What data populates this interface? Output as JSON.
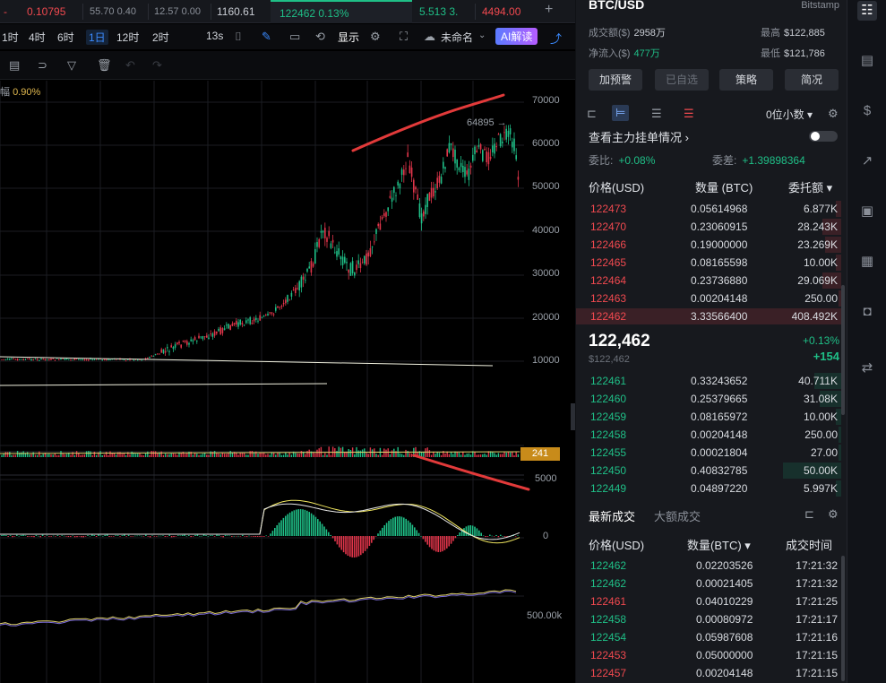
{
  "ticker_strip": {
    "items": [
      {
        "text": "-",
        "color": "red"
      },
      {
        "text": "0.10795",
        "color": "red"
      },
      {
        "text": "55.70  0.40",
        "color": "grey"
      },
      {
        "text": "12.57  0.00",
        "color": "grey"
      },
      {
        "text": "1160.61",
        "color": "light"
      },
      {
        "text": "122462  0.13%",
        "color": "green"
      },
      {
        "text": "5.513  3.",
        "color": "green"
      },
      {
        "text": "4494.00",
        "color": "red"
      }
    ]
  },
  "toolbar": {
    "timeframes": [
      "1时",
      "4时",
      "6时",
      "1日",
      "12时",
      "2时"
    ],
    "active_timeframe": "1日",
    "countdown": "13s",
    "display_label": "显示",
    "layout_name": "未命名",
    "ai_label": "AI解读"
  },
  "chart": {
    "change_pct": "0.90%",
    "high_label": "64895",
    "price_axis": [
      "70000",
      "60000",
      "50000",
      "40000",
      "30000",
      "20000",
      "10000"
    ],
    "volume_badge": "241",
    "volume_axis": "5000",
    "macd_axis": "0",
    "obv_axis": "500.00k",
    "colors": {
      "up": "#1fbf87",
      "down": "#e0354a",
      "annotation": "#e23a3a"
    }
  },
  "panel": {
    "symbol": "BTC/USD",
    "exchange": "Bitstamp",
    "turnover_label": "成交额($)",
    "turnover_value": "2958万",
    "high_label": "最高",
    "high_value": "$122,885",
    "netflow_label": "净流入($)",
    "netflow_value": "477万",
    "low_label": "最低",
    "low_value": "$121,786",
    "buttons": [
      "加预警",
      "已自选",
      "策略",
      "简况"
    ],
    "depth_select": "0位小数",
    "main_orders": "查看主力挂单情况",
    "ratio_label": "委比:",
    "ratio_value": "+0.08%",
    "diff_label": "委差:",
    "diff_value": "+1.39898364",
    "ob_headers": {
      "price": "价格(USD)",
      "qty": "数量 (BTC)",
      "total": "委托额"
    },
    "asks": [
      {
        "price": "122473",
        "qty": "0.05614968",
        "total": "6.877K",
        "depth": 0.02
      },
      {
        "price": "122470",
        "qty": "0.23060915",
        "total": "28.243K",
        "depth": 0.07
      },
      {
        "price": "122466",
        "qty": "0.19000000",
        "total": "23.269K",
        "depth": 0.06
      },
      {
        "price": "122465",
        "qty": "0.08165598",
        "total": "10.00K",
        "depth": 0.02
      },
      {
        "price": "122464",
        "qty": "0.23736880",
        "total": "29.069K",
        "depth": 0.07
      },
      {
        "price": "122463",
        "qty": "0.00204148",
        "total": "250.00",
        "depth": 0.01
      },
      {
        "price": "122462",
        "qty": "3.33566400",
        "total": "408.492K",
        "depth": 1.0
      }
    ],
    "last_price": "122,462",
    "last_price_usd": "$122,462",
    "change_pct": "+0.13%",
    "change_abs": "+154",
    "bids": [
      {
        "price": "122461",
        "qty": "0.33243652",
        "total": "40.711K",
        "depth": 0.1
      },
      {
        "price": "122460",
        "qty": "0.25379665",
        "total": "31.08K",
        "depth": 0.08
      },
      {
        "price": "122459",
        "qty": "0.08165972",
        "total": "10.00K",
        "depth": 0.02
      },
      {
        "price": "122458",
        "qty": "0.00204148",
        "total": "250.00",
        "depth": 0.01
      },
      {
        "price": "122455",
        "qty": "0.00021804",
        "total": "27.00",
        "depth": 0.01
      },
      {
        "price": "122450",
        "qty": "0.40832785",
        "total": "50.00K",
        "depth": 0.22
      },
      {
        "price": "122449",
        "qty": "0.04897220",
        "total": "5.997K",
        "depth": 0.02
      }
    ],
    "trades_tabs": [
      "最新成交",
      "大额成交"
    ],
    "trade_headers": {
      "price": "价格(USD)",
      "qty": "数量(BTC)",
      "time": "成交时间"
    },
    "trades": [
      {
        "price": "122462",
        "side": "buy",
        "qty": "0.02203526",
        "time": "17:21:32"
      },
      {
        "price": "122462",
        "side": "buy",
        "qty": "0.00021405",
        "time": "17:21:32"
      },
      {
        "price": "122461",
        "side": "sell",
        "qty": "0.04010229",
        "time": "17:21:25"
      },
      {
        "price": "122458",
        "side": "buy",
        "qty": "0.00080972",
        "time": "17:21:17"
      },
      {
        "price": "122454",
        "side": "buy",
        "qty": "0.05987608",
        "time": "17:21:16"
      },
      {
        "price": "122453",
        "side": "sell",
        "qty": "0.05000000",
        "time": "17:21:15"
      },
      {
        "price": "122457",
        "side": "sell",
        "qty": "0.00204148",
        "time": "17:21:15"
      }
    ]
  }
}
